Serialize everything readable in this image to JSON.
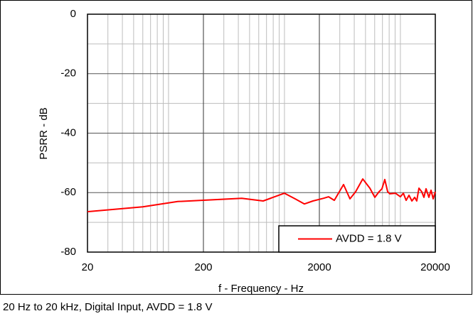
{
  "chart_data": {
    "type": "line",
    "xlabel": "f - Frequency - Hz",
    "ylabel": "PSRR - dB",
    "caption": "20 Hz to 20 kHz, Digital Input, AVDD = 1.8 V",
    "xscale": "log",
    "xlim": [
      20,
      20000
    ],
    "xticks": [
      20,
      200,
      2000,
      20000
    ],
    "xminor": [
      30,
      40,
      50,
      60,
      70,
      80,
      90,
      100,
      300,
      400,
      500,
      600,
      700,
      800,
      900,
      1000,
      3000,
      4000,
      5000,
      6000,
      7000,
      8000,
      9000,
      10000
    ],
    "ylim": [
      -80,
      0
    ],
    "yticks": [
      0,
      -20,
      -40,
      -60,
      -80
    ],
    "yminor": [
      -10,
      -30,
      -50,
      -70
    ],
    "grid": true,
    "legend": "lower right",
    "x": [
      20,
      60,
      120,
      428,
      655,
      1000,
      1236,
      1486,
      1762,
      2178,
      2404,
      2690,
      3234,
      3672,
      4110,
      4734,
      5454,
      6020,
      6545,
      6934,
      7332,
      7760,
      8100,
      9060,
      10000,
      10600,
      11200,
      11860,
      12560,
      13280,
      13840,
      14450,
      15280,
      15960,
      16640,
      17620,
      18370,
      19180,
      20000
    ],
    "series": [
      {
        "name": "AVDD = 1.8 V",
        "color": "#ff0000",
        "values": [
          -66.4,
          -64.8,
          -63.0,
          -61.9,
          -62.8,
          -60.2,
          -62.1,
          -63.8,
          -62.8,
          -61.9,
          -61.4,
          -62.6,
          -57.3,
          -62.1,
          -59.7,
          -55.4,
          -58.5,
          -61.6,
          -59.7,
          -58.7,
          -55.6,
          -59.7,
          -60.4,
          -60.2,
          -61.4,
          -60.2,
          -62.6,
          -60.9,
          -62.8,
          -61.6,
          -62.8,
          -58.5,
          -59.7,
          -61.6,
          -58.7,
          -61.6,
          -59.2,
          -62.1,
          -59.7
        ]
      }
    ]
  }
}
